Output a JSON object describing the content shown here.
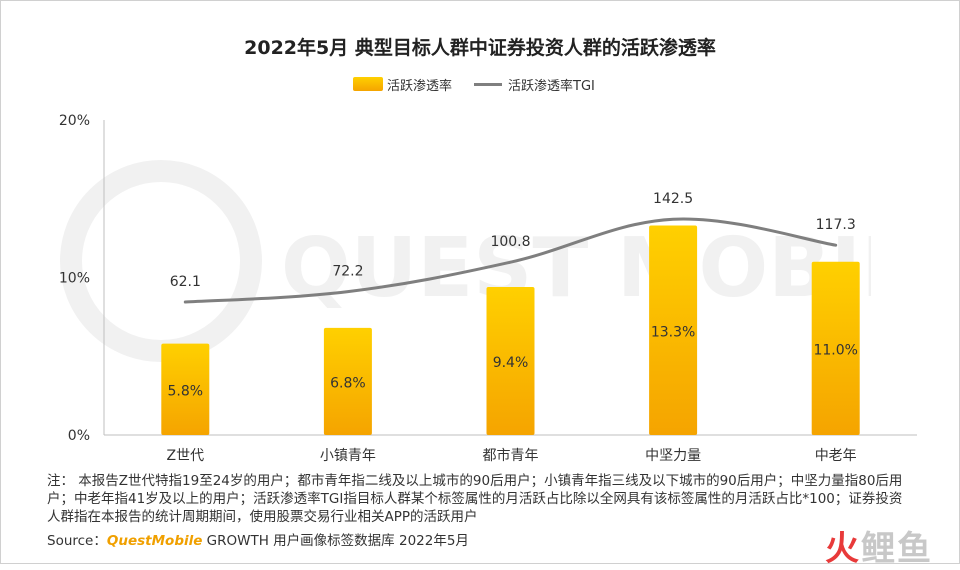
{
  "title": "2022年5月 典型目标人群中证券投资人群的活跃渗透率",
  "legend": {
    "bar_label": "活跃渗透率",
    "line_label": "活跃渗透率TGI"
  },
  "watermark_text": "QUEST MOBILE",
  "note": "注： 本报告Z世代特指19至24岁的用户；都市青年指二线及以上城市的90后用户；小镇青年指三线及以下城市的90后用户；中坚力量指80后用户；中老年指41岁及以上的用户；活跃渗透率TGI指目标人群某个标签属性的月活跃占比除以全网具有该标签属性的月活跃占比*100；证券投资人群指在本报告的统计周期期间，使用股票交易行业相关APP的活跃用户",
  "source": {
    "prefix": "Source：",
    "brand": "QuestMobile",
    "suffix": " GROWTH 用户画像标签数据库 2022年5月"
  },
  "logo_text": {
    "a": "火",
    "b": "鲤",
    "c": "鱼"
  },
  "colors": {
    "bar_top": "#ffd000",
    "bar_bottom": "#f5a400",
    "line": "#7f7f7f"
  },
  "chart_data": {
    "type": "bar",
    "categories": [
      "Z世代",
      "小镇青年",
      "都市青年",
      "中坚力量",
      "中老年"
    ],
    "series": [
      {
        "name": "活跃渗透率",
        "type": "bar",
        "axis": "left",
        "values": [
          5.8,
          6.8,
          9.4,
          13.3,
          11.0
        ],
        "labels": [
          "5.8%",
          "6.8%",
          "9.4%",
          "13.3%",
          "11.0%"
        ]
      },
      {
        "name": "活跃渗透率TGI",
        "type": "line",
        "axis": "secondary",
        "smooth": true,
        "values": [
          62.1,
          72.2,
          100.8,
          142.5,
          117.3
        ],
        "labels": [
          "62.1",
          "72.2",
          "100.8",
          "142.5",
          "117.3"
        ]
      }
    ],
    "ylim": [
      0,
      20
    ],
    "yticks": [
      "0%",
      "10%",
      "20%"
    ],
    "secondary_axis_visible": false,
    "legend_position": "top-center",
    "grid": false
  }
}
